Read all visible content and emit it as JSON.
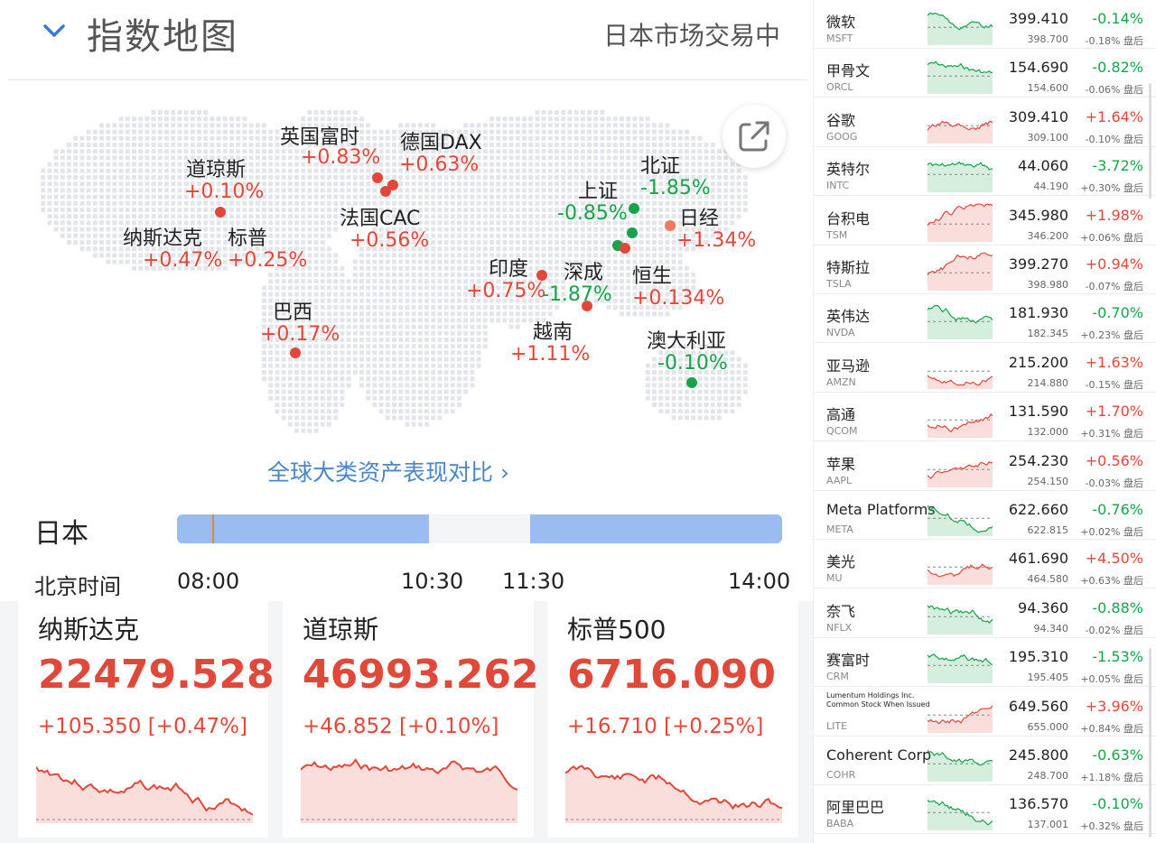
{
  "header": {
    "title": "指数地图",
    "status": "日本市场交易中"
  },
  "colors": {
    "up": "#e0483a",
    "down": "#16a34a",
    "link": "#4a86c8",
    "session_bar": "#9bbcf0"
  },
  "map_markers": [
    {
      "label": "道琼斯",
      "value": "+0.10%",
      "dir": "up"
    },
    {
      "label": "纳斯达克",
      "value": "+0.47%",
      "dir": "up"
    },
    {
      "label": "标普",
      "value": "+0.25%",
      "dir": "up"
    },
    {
      "label": "巴西",
      "value": "+0.17%",
      "dir": "up"
    },
    {
      "label": "英国富时",
      "value": "+0.83%",
      "dir": "up"
    },
    {
      "label": "德国DAX",
      "value": "+0.63%",
      "dir": "up"
    },
    {
      "label": "法国CAC",
      "value": "+0.56%",
      "dir": "up"
    },
    {
      "label": "上证",
      "value": "-0.85%",
      "dir": "down"
    },
    {
      "label": "北证",
      "value": "-1.85%",
      "dir": "down"
    },
    {
      "label": "日经",
      "value": "+1.34%",
      "dir": "up"
    },
    {
      "label": "印度",
      "value": "+0.75%",
      "dir": "up"
    },
    {
      "label": "深成",
      "value": "-1.87%",
      "dir": "down"
    },
    {
      "label": "恒生",
      "value": "+0.134%",
      "dir": "up"
    },
    {
      "label": "越南",
      "value": "+1.11%",
      "dir": "up"
    },
    {
      "label": "澳大利亚",
      "value": "-0.10%",
      "dir": "down"
    }
  ],
  "global_link": "全球大类资产表现对比 ›",
  "session": {
    "country": "日本",
    "time_label": "北京时间",
    "times": [
      "08:00",
      "10:30",
      "11:30",
      "14:00"
    ]
  },
  "index_cards": [
    {
      "name": "纳斯达克",
      "price": "22479.528",
      "change": "+105.350 [+0.47%]"
    },
    {
      "name": "道琼斯",
      "price": "46993.262",
      "change": "+46.852 [+0.10%]"
    },
    {
      "name": "标普500",
      "price": "6716.090",
      "change": "+16.710 [+0.25%]"
    }
  ],
  "stocks": [
    {
      "name": "微软",
      "ticker": "MSFT",
      "price": "399.410",
      "pct": "-0.14%",
      "dir": "down",
      "after": "398.700",
      "after_pct": "-0.18% 盘后"
    },
    {
      "name": "甲骨文",
      "ticker": "ORCL",
      "price": "154.690",
      "pct": "-0.82%",
      "dir": "down",
      "after": "154.600",
      "after_pct": "-0.06% 盘后"
    },
    {
      "name": "谷歌",
      "ticker": "GOOG",
      "price": "309.410",
      "pct": "+1.64%",
      "dir": "up",
      "after": "309.100",
      "after_pct": "-0.10% 盘后"
    },
    {
      "name": "英特尔",
      "ticker": "INTC",
      "price": "44.060",
      "pct": "-3.72%",
      "dir": "down",
      "after": "44.190",
      "after_pct": "+0.30% 盘后"
    },
    {
      "name": "台积电",
      "ticker": "TSM",
      "price": "345.980",
      "pct": "+1.98%",
      "dir": "up",
      "after": "346.200",
      "after_pct": "+0.06% 盘后"
    },
    {
      "name": "特斯拉",
      "ticker": "TSLA",
      "price": "399.270",
      "pct": "+0.94%",
      "dir": "up",
      "after": "398.980",
      "after_pct": "-0.07% 盘后"
    },
    {
      "name": "英伟达",
      "ticker": "NVDA",
      "price": "181.930",
      "pct": "-0.70%",
      "dir": "down",
      "after": "182.345",
      "after_pct": "+0.23% 盘后"
    },
    {
      "name": "亚马逊",
      "ticker": "AMZN",
      "price": "215.200",
      "pct": "+1.63%",
      "dir": "up",
      "after": "214.880",
      "after_pct": "-0.15% 盘后"
    },
    {
      "name": "高通",
      "ticker": "QCOM",
      "price": "131.590",
      "pct": "+1.70%",
      "dir": "up",
      "after": "132.000",
      "after_pct": "+0.31% 盘后"
    },
    {
      "name": "苹果",
      "ticker": "AAPL",
      "price": "254.230",
      "pct": "+0.56%",
      "dir": "up",
      "after": "254.150",
      "after_pct": "-0.03% 盘后"
    },
    {
      "name": "Meta Platforms",
      "ticker": "META",
      "price": "622.660",
      "pct": "-0.76%",
      "dir": "down",
      "after": "622.815",
      "after_pct": "+0.02% 盘后"
    },
    {
      "name": "美光",
      "ticker": "MU",
      "price": "461.690",
      "pct": "+4.50%",
      "dir": "up",
      "after": "464.580",
      "after_pct": "+0.63% 盘后"
    },
    {
      "name": "奈飞",
      "ticker": "NFLX",
      "price": "94.360",
      "pct": "-0.88%",
      "dir": "down",
      "after": "94.340",
      "after_pct": "-0.02% 盘后"
    },
    {
      "name": "赛富时",
      "ticker": "CRM",
      "price": "195.310",
      "pct": "-1.53%",
      "dir": "down",
      "after": "195.405",
      "after_pct": "+0.05% 盘后"
    },
    {
      "name": "Lumentum Holdings Inc. Common Stock When Issued",
      "ticker": "LITE",
      "price": "649.560",
      "pct": "+3.96%",
      "dir": "up",
      "after": "655.000",
      "after_pct": "+0.84% 盘后"
    },
    {
      "name": "Coherent Corp",
      "ticker": "COHR",
      "price": "245.800",
      "pct": "-0.63%",
      "dir": "down",
      "after": "248.700",
      "after_pct": "+1.18% 盘后"
    },
    {
      "name": "阿里巴巴",
      "ticker": "BABA",
      "price": "136.570",
      "pct": "-0.10%",
      "dir": "down",
      "after": "137.001",
      "after_pct": "+0.32% 盘后"
    }
  ]
}
